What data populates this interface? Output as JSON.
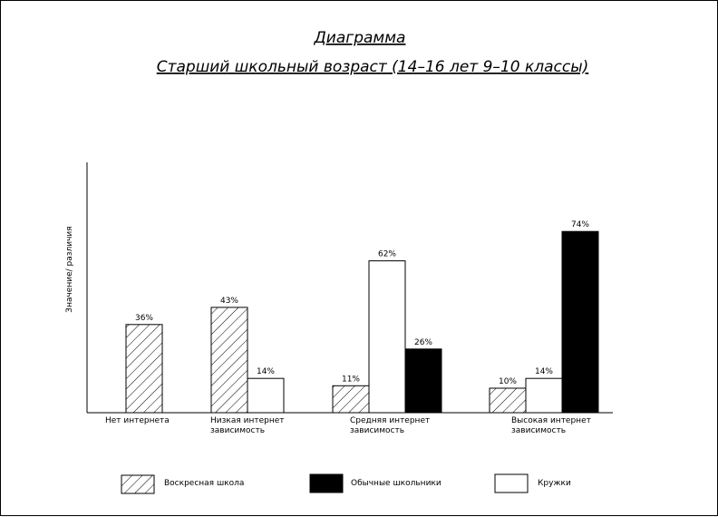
{
  "chart_data": {
    "type": "bar",
    "title": "Диаграмма",
    "subtitle": "Старший школьный возраст (14–16 лет 9–10 классы)",
    "ylabel": "Значение/ различия",
    "xlabel": "",
    "ylim": [
      0,
      100
    ],
    "grid": false,
    "legend_position": "bottom",
    "categories": [
      [
        "Нет интернета"
      ],
      [
        "Низкая интернет",
        "зависимость"
      ],
      [
        "Средняя интернет",
        "зависимость"
      ],
      [
        "Высокая интернет",
        "зависимость"
      ]
    ],
    "series": [
      {
        "name": "Воскресная школа",
        "style": "hatch",
        "values": [
          36,
          43,
          11,
          10
        ],
        "labels": [
          "36%",
          "43%",
          "11%",
          "10%"
        ]
      },
      {
        "name": "Кружки",
        "style": "white",
        "values": [
          null,
          14,
          62,
          14
        ],
        "labels": [
          "",
          "14%",
          "62%",
          "14%"
        ]
      },
      {
        "name": "Обычные школьники",
        "style": "black",
        "values": [
          null,
          null,
          26,
          74
        ],
        "labels": [
          "",
          "",
          "26%",
          "74%"
        ]
      }
    ],
    "legend": [
      "Воскресная школа",
      "Обычные школьники",
      "Кружки"
    ]
  },
  "colors": {
    "bar_black": "#000000",
    "bar_white": "#ffffff",
    "stroke": "#000000"
  }
}
